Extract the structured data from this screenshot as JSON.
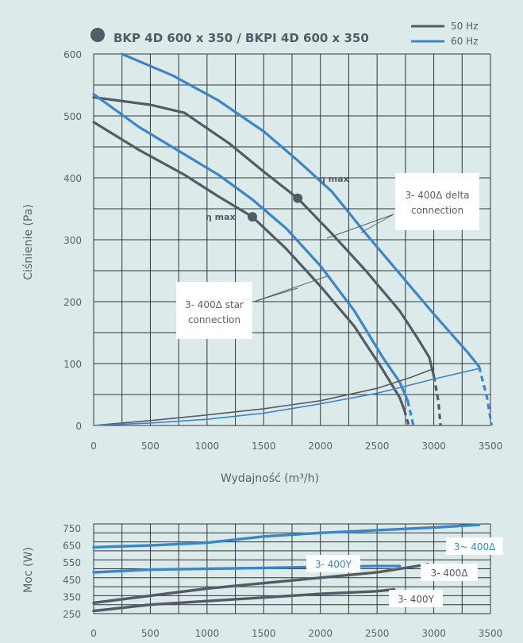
{
  "title": "BKP 4D 600 x 350 / BKPI 4D 600 x 350",
  "colors": {
    "background": "#ddeaea",
    "hz50": "#545b66",
    "hz60": "#3a86c8",
    "grid": "#2f3540",
    "text": "#5a616b",
    "bullet": "#545b66"
  },
  "legend": [
    {
      "label": "50 Hz",
      "color": "#545b66"
    },
    {
      "label": "60 Hz",
      "color": "#3a86c8"
    }
  ],
  "chart_data": [
    {
      "type": "line",
      "title": "BKP 4D 600 x 350 / BKPI 4D 600 x 350",
      "xlabel": "Wydajność (m³/h)",
      "ylabel": "Ciśnienie (Pa)",
      "xlim": [
        0,
        3500
      ],
      "ylim": [
        0,
        600
      ],
      "x_ticks": [
        "0",
        "500",
        "1000",
        "1500",
        "2000",
        "2500",
        "3000",
        "3500"
      ],
      "y_ticks": [
        "0",
        "100",
        "200",
        "300",
        "400",
        "500",
        "600"
      ],
      "grid": true,
      "legend_position": "top-right",
      "series": [
        {
          "name": "50 Hz",
          "color": "#545b66",
          "dashed_tail": true,
          "points": [
            [
              0,
              530
            ],
            [
              500,
              518
            ],
            [
              800,
              505
            ],
            [
              1200,
              455
            ],
            [
              1500,
              410
            ],
            [
              1800,
              367
            ],
            [
              2100,
              310
            ],
            [
              2400,
              250
            ],
            [
              2700,
              185
            ],
            [
              2860,
              140
            ],
            [
              2960,
              110
            ],
            [
              3000,
              80
            ]
          ],
          "tail": [
            [
              3000,
              80
            ],
            [
              3040,
              40
            ],
            [
              3060,
              0
            ]
          ]
        },
        {
          "name": "50 Hz",
          "color": "#545b66",
          "dashed_tail": true,
          "points": [
            [
              0,
              490
            ],
            [
              400,
              445
            ],
            [
              800,
              405
            ],
            [
              1100,
              370
            ],
            [
              1400,
              337
            ],
            [
              1700,
              285
            ],
            [
              2000,
              225
            ],
            [
              2300,
              160
            ],
            [
              2550,
              90
            ],
            [
              2700,
              45
            ],
            [
              2740,
              25
            ]
          ],
          "tail": [
            [
              2740,
              25
            ],
            [
              2780,
              0
            ]
          ]
        },
        {
          "name": "60 Hz",
          "color": "#3a86c8",
          "dashed_tail": true,
          "points": [
            [
              250,
              600
            ],
            [
              700,
              565
            ],
            [
              1100,
              525
            ],
            [
              1500,
              475
            ],
            [
              1800,
              428
            ],
            [
              2100,
              378
            ],
            [
              2400,
              310
            ],
            [
              2700,
              245
            ],
            [
              3000,
              180
            ],
            [
              3300,
              118
            ],
            [
              3400,
              95
            ]
          ],
          "tail": [
            [
              3400,
              95
            ],
            [
              3470,
              45
            ],
            [
              3510,
              0
            ]
          ]
        },
        {
          "name": "60 Hz",
          "color": "#3a86c8",
          "dashed_tail": true,
          "points": [
            [
              0,
              535
            ],
            [
              400,
              482
            ],
            [
              800,
              438
            ],
            [
              1100,
              405
            ],
            [
              1400,
              365
            ],
            [
              1700,
              318
            ],
            [
              2000,
              258
            ],
            [
              2300,
              185
            ],
            [
              2550,
              110
            ],
            [
              2700,
              70
            ],
            [
              2770,
              40
            ]
          ],
          "tail": [
            [
              2770,
              40
            ],
            [
              2820,
              0
            ]
          ]
        },
        {
          "name": "50 Hz",
          "color": "#545b66",
          "role": "system curve",
          "points": [
            [
              0,
              0
            ],
            [
              500,
              8
            ],
            [
              1000,
              17
            ],
            [
              1500,
              27
            ],
            [
              2000,
              40
            ],
            [
              2500,
              60
            ],
            [
              2800,
              78
            ],
            [
              3000,
              92
            ]
          ]
        },
        {
          "name": "60 Hz",
          "color": "#3a86c8",
          "role": "system curve",
          "points": [
            [
              0,
              0
            ],
            [
              500,
              4
            ],
            [
              1000,
              10
            ],
            [
              1500,
              20
            ],
            [
              2000,
              35
            ],
            [
              2500,
              52
            ],
            [
              3000,
              75
            ],
            [
              3400,
              92
            ]
          ]
        }
      ],
      "markers": [
        {
          "label": "η max",
          "x": 1800,
          "y": 367
        },
        {
          "label": "η max",
          "x": 1400,
          "y": 337
        }
      ],
      "annotations": [
        {
          "lines": [
            "3- 400Δ delta",
            "connection"
          ]
        },
        {
          "lines": [
            "3- 400Δ star",
            "connection"
          ]
        }
      ]
    },
    {
      "type": "line",
      "xlabel": "",
      "ylabel": "Moc (W)",
      "xlim": [
        0,
        3500
      ],
      "ylim": [
        250,
        750
      ],
      "x_ticks": [
        "0",
        "500",
        "1000",
        "1500",
        "2000",
        "2500",
        "3000",
        "3500"
      ],
      "y_ticks": [
        "250",
        "350",
        "450",
        "550",
        "650",
        "750"
      ],
      "grid": true,
      "series": [
        {
          "name": "3~ 400Δ",
          "color": "#3a86c8",
          "points": [
            [
              0,
              620
            ],
            [
              500,
              630
            ],
            [
              1000,
              645
            ],
            [
              1500,
              680
            ],
            [
              2000,
              700
            ],
            [
              2500,
              715
            ],
            [
              3000,
              730
            ],
            [
              3400,
              745
            ]
          ]
        },
        {
          "name": "3- 400Y",
          "color": "#3a86c8",
          "points": [
            [
              0,
              480
            ],
            [
              500,
              495
            ],
            [
              1000,
              500
            ],
            [
              1500,
              505
            ],
            [
              2000,
              510
            ],
            [
              2500,
              515
            ],
            [
              2700,
              515
            ]
          ]
        },
        {
          "name": "3- 400Δ",
          "color": "#545b66",
          "points": [
            [
              0,
              310
            ],
            [
              500,
              350
            ],
            [
              1000,
              390
            ],
            [
              1500,
              420
            ],
            [
              2000,
              450
            ],
            [
              2500,
              480
            ],
            [
              2950,
              525
            ]
          ]
        },
        {
          "name": "3- 400Y",
          "color": "#545b66",
          "points": [
            [
              0,
              265
            ],
            [
              500,
              300
            ],
            [
              1000,
              320
            ],
            [
              1500,
              340
            ],
            [
              2000,
              360
            ],
            [
              2500,
              375
            ],
            [
              2650,
              385
            ]
          ]
        }
      ],
      "labels": [
        "3~ 400Δ",
        "3- 400Y",
        "3- 400Δ",
        "3- 400Y"
      ]
    }
  ]
}
